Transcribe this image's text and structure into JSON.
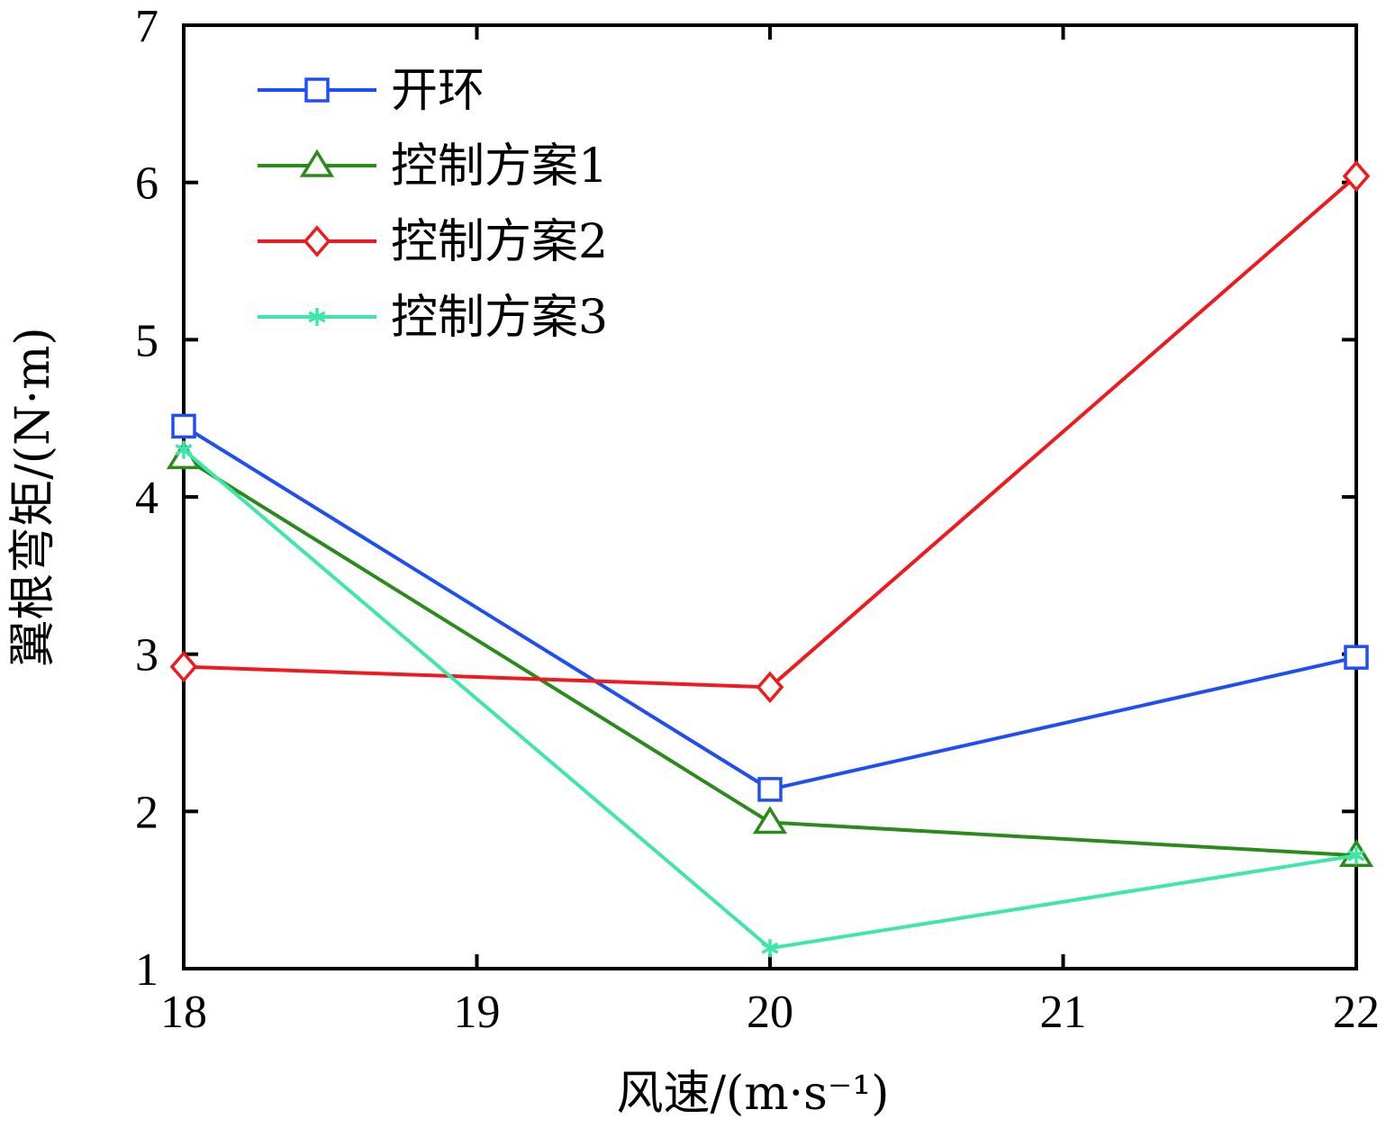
{
  "chart_data": {
    "type": "line",
    "xlabel": "风速/(m·s⁻¹)",
    "ylabel": "翼根弯矩/(N·m)",
    "xlim": [
      18,
      22
    ],
    "ylim": [
      1,
      7
    ],
    "x_ticks": [
      18,
      19,
      20,
      21,
      22
    ],
    "y_ticks": [
      1,
      2,
      3,
      4,
      5,
      6,
      7
    ],
    "x": [
      18,
      20,
      22
    ],
    "grid": false,
    "legend_position": "top-left",
    "series": [
      {
        "name": "开环",
        "values": [
          4.45,
          2.14,
          2.98
        ],
        "color": "#1f4ef5",
        "marker": "square"
      },
      {
        "name": "控制方案1",
        "values": [
          4.25,
          1.93,
          1.72
        ],
        "color": "#2a8a1a",
        "marker": "triangle"
      },
      {
        "name": "控制方案2",
        "values": [
          2.92,
          2.79,
          6.04
        ],
        "color": "#f0191e",
        "marker": "diamond"
      },
      {
        "name": "控制方案3",
        "values": [
          4.3,
          1.13,
          1.72
        ],
        "color": "#3ee6a8",
        "marker": "asterisk"
      }
    ]
  }
}
